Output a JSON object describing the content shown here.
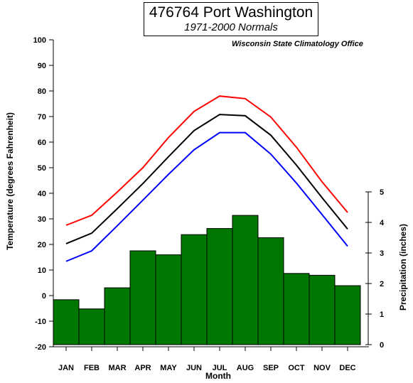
{
  "title": {
    "line1": "476764 Port Washington",
    "line2": "1971-2000 Normals"
  },
  "source_label": "Wisconsin State Climatology Office",
  "chart_data": {
    "type": "bar+line",
    "categories": [
      "JAN",
      "FEB",
      "MAR",
      "APR",
      "MAY",
      "JUN",
      "JUL",
      "AUG",
      "SEP",
      "OCT",
      "NOV",
      "DEC"
    ],
    "xlabel": "Month",
    "ylabel_left": "Temperature (degrees Fahrenheit)",
    "ylabel_right": "Precipitation (inches)",
    "ylim_left": [
      -20,
      100
    ],
    "yticks_left": [
      -20,
      -10,
      0,
      10,
      20,
      30,
      40,
      50,
      60,
      70,
      80,
      90,
      100
    ],
    "ylim_right": [
      0,
      5
    ],
    "yticks_right": [
      0,
      1,
      2,
      3,
      4,
      5
    ],
    "bars": {
      "axis": "right",
      "color": "#007700",
      "values": [
        1.47,
        1.17,
        1.86,
        3.07,
        2.94,
        3.6,
        3.8,
        4.23,
        3.5,
        2.33,
        2.27,
        1.93
      ]
    },
    "series": [
      {
        "axis": "left",
        "color": "#ff0000",
        "values": [
          27.5,
          31.4,
          40.5,
          50.0,
          61.8,
          72.0,
          78.0,
          77.0,
          69.8,
          58.0,
          44.5,
          32.5
        ]
      },
      {
        "axis": "left",
        "color": "#000000",
        "values": [
          20.3,
          24.4,
          34.0,
          43.8,
          54.3,
          64.5,
          70.8,
          70.3,
          62.7,
          51.0,
          38.3,
          26.0
        ]
      },
      {
        "axis": "left",
        "color": "#0000ff",
        "values": [
          13.4,
          17.5,
          27.3,
          37.3,
          47.4,
          57.0,
          63.7,
          63.7,
          55.3,
          44.0,
          31.7,
          19.3
        ]
      }
    ]
  }
}
